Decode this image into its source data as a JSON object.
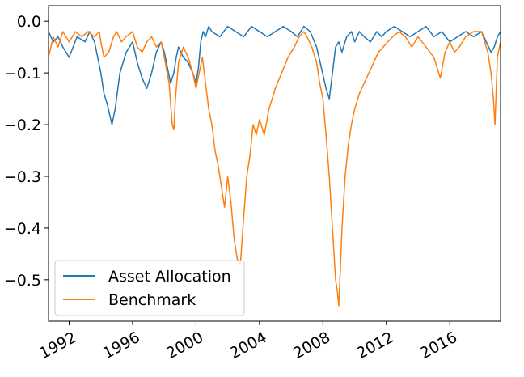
{
  "chart_data": {
    "type": "line",
    "title": "",
    "xlabel": "",
    "ylabel": "",
    "xlim": [
      1990.7,
      2019.2
    ],
    "ylim": [
      -0.58,
      0.03
    ],
    "x_ticks": [
      1992,
      1996,
      2000,
      2004,
      2008,
      2012,
      2016
    ],
    "x_tick_labels": [
      "1992",
      "1996",
      "2000",
      "2004",
      "2008",
      "2012",
      "2016"
    ],
    "y_ticks": [
      0.0,
      -0.1,
      -0.2,
      -0.3,
      -0.4,
      -0.5
    ],
    "y_tick_labels": [
      "0.0",
      "−0.1",
      "−0.2",
      "−0.3",
      "−0.4",
      "−0.5"
    ],
    "grid": false,
    "legend": {
      "placement": "lower-left"
    },
    "series": [
      {
        "name": "Asset Allocation",
        "color": "#1f77b4",
        "x": [
          1990.7,
          1991.0,
          1991.3,
          1991.6,
          1992.0,
          1992.5,
          1993.0,
          1993.3,
          1993.6,
          1993.8,
          1994.0,
          1994.2,
          1994.4,
          1994.55,
          1994.7,
          1994.9,
          1995.2,
          1995.6,
          1996.0,
          1996.3,
          1996.6,
          1996.9,
          1997.2,
          1997.5,
          1997.8,
          1998.0,
          1998.2,
          1998.4,
          1998.6,
          1998.75,
          1998.9,
          1999.2,
          1999.5,
          1999.8,
          2000.0,
          2000.15,
          2000.3,
          2000.45,
          2000.6,
          2000.8,
          2001.0,
          2001.5,
          2002.0,
          2002.5,
          2003.0,
          2003.5,
          2004.0,
          2004.5,
          2005.0,
          2005.5,
          2006.0,
          2006.4,
          2006.8,
          2007.2,
          2007.6,
          2007.9,
          2008.2,
          2008.4,
          2008.6,
          2008.8,
          2009.0,
          2009.2,
          2009.5,
          2009.8,
          2010.0,
          2010.3,
          2010.6,
          2011.0,
          2011.4,
          2011.7,
          2012.0,
          2012.5,
          2013.0,
          2013.5,
          2014.0,
          2014.5,
          2015.0,
          2015.5,
          2016.0,
          2016.5,
          2017.0,
          2017.5,
          2018.0,
          2018.3,
          2018.6,
          2018.8,
          2019.0,
          2019.2
        ],
        "values": [
          -0.02,
          -0.04,
          -0.03,
          -0.05,
          -0.07,
          -0.03,
          -0.04,
          -0.02,
          -0.04,
          -0.07,
          -0.1,
          -0.14,
          -0.16,
          -0.18,
          -0.2,
          -0.17,
          -0.1,
          -0.06,
          -0.04,
          -0.08,
          -0.11,
          -0.13,
          -0.1,
          -0.06,
          -0.04,
          -0.06,
          -0.09,
          -0.12,
          -0.1,
          -0.07,
          -0.05,
          -0.07,
          -0.08,
          -0.1,
          -0.12,
          -0.09,
          -0.04,
          -0.02,
          -0.03,
          -0.01,
          -0.02,
          -0.03,
          -0.01,
          -0.02,
          -0.03,
          -0.01,
          -0.02,
          -0.03,
          -0.02,
          -0.01,
          -0.02,
          -0.03,
          -0.01,
          -0.02,
          -0.05,
          -0.09,
          -0.13,
          -0.15,
          -0.1,
          -0.05,
          -0.04,
          -0.06,
          -0.03,
          -0.02,
          -0.04,
          -0.02,
          -0.03,
          -0.04,
          -0.02,
          -0.03,
          -0.02,
          -0.01,
          -0.02,
          -0.03,
          -0.02,
          -0.01,
          -0.03,
          -0.02,
          -0.04,
          -0.03,
          -0.02,
          -0.03,
          -0.02,
          -0.04,
          -0.06,
          -0.05,
          -0.03,
          -0.02
        ]
      },
      {
        "name": "Benchmark",
        "color": "#ff7f0e",
        "x": [
          1990.7,
          1991.0,
          1991.3,
          1991.6,
          1992.0,
          1992.4,
          1992.8,
          1993.2,
          1993.6,
          1993.9,
          1994.0,
          1994.2,
          1994.5,
          1994.8,
          1995.0,
          1995.3,
          1995.6,
          1996.0,
          1996.3,
          1996.6,
          1996.9,
          1997.2,
          1997.5,
          1997.8,
          1998.0,
          1998.3,
          1998.5,
          1998.6,
          1998.7,
          1998.9,
          1999.2,
          1999.5,
          1999.8,
          2000.0,
          2000.2,
          2000.4,
          2000.6,
          2000.8,
          2001.0,
          2001.2,
          2001.4,
          2001.6,
          2001.8,
          2002.0,
          2002.2,
          2002.4,
          2002.6,
          2002.8,
          2003.0,
          2003.2,
          2003.4,
          2003.6,
          2003.8,
          2004.0,
          2004.3,
          2004.6,
          2005.0,
          2005.4,
          2005.8,
          2006.2,
          2006.5,
          2006.8,
          2007.0,
          2007.3,
          2007.6,
          2007.8,
          2008.0,
          2008.2,
          2008.4,
          2008.6,
          2008.8,
          2008.9,
          2009.0,
          2009.1,
          2009.2,
          2009.4,
          2009.6,
          2009.8,
          2010.0,
          2010.3,
          2010.6,
          2010.9,
          2011.2,
          2011.5,
          2011.8,
          2012.1,
          2012.4,
          2012.8,
          2013.2,
          2013.6,
          2014.0,
          2014.5,
          2015.0,
          2015.4,
          2015.7,
          2016.0,
          2016.3,
          2016.6,
          2017.0,
          2017.5,
          2018.0,
          2018.2,
          2018.4,
          2018.6,
          2018.75,
          2018.85,
          2019.0,
          2019.2
        ],
        "values": [
          -0.07,
          -0.03,
          -0.05,
          -0.02,
          -0.04,
          -0.02,
          -0.03,
          -0.02,
          -0.03,
          -0.02,
          -0.04,
          -0.07,
          -0.06,
          -0.03,
          -0.02,
          -0.04,
          -0.03,
          -0.02,
          -0.05,
          -0.06,
          -0.04,
          -0.03,
          -0.05,
          -0.04,
          -0.07,
          -0.12,
          -0.2,
          -0.21,
          -0.15,
          -0.08,
          -0.05,
          -0.07,
          -0.1,
          -0.13,
          -0.1,
          -0.07,
          -0.12,
          -0.17,
          -0.2,
          -0.25,
          -0.28,
          -0.32,
          -0.36,
          -0.3,
          -0.35,
          -0.42,
          -0.46,
          -0.47,
          -0.38,
          -0.3,
          -0.26,
          -0.2,
          -0.22,
          -0.19,
          -0.22,
          -0.17,
          -0.13,
          -0.1,
          -0.07,
          -0.05,
          -0.03,
          -0.02,
          -0.03,
          -0.05,
          -0.08,
          -0.12,
          -0.15,
          -0.22,
          -0.3,
          -0.4,
          -0.5,
          -0.52,
          -0.55,
          -0.48,
          -0.4,
          -0.3,
          -0.24,
          -0.2,
          -0.17,
          -0.14,
          -0.12,
          -0.1,
          -0.08,
          -0.06,
          -0.05,
          -0.04,
          -0.03,
          -0.02,
          -0.03,
          -0.05,
          -0.03,
          -0.05,
          -0.07,
          -0.11,
          -0.06,
          -0.04,
          -0.06,
          -0.05,
          -0.03,
          -0.02,
          -0.02,
          -0.04,
          -0.06,
          -0.1,
          -0.15,
          -0.2,
          -0.07,
          -0.04
        ]
      }
    ]
  }
}
